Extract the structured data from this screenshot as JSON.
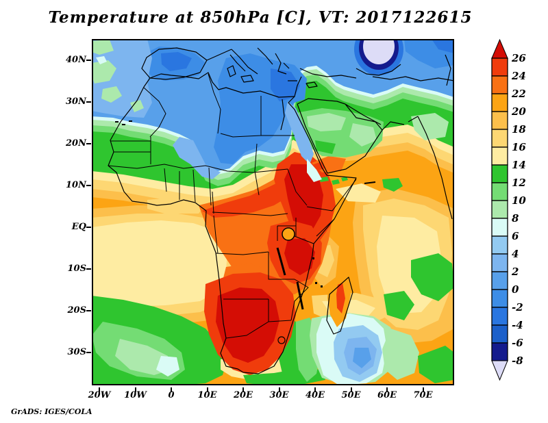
{
  "title": "Temperature at 850hPa [C], VT: 2017122615",
  "credit": "GrADS: IGES/COLA",
  "axes": {
    "y_ticks": [
      "40N",
      "30N",
      "20N",
      "10N",
      "EQ",
      "10S",
      "20S",
      "30S"
    ],
    "x_ticks": [
      "20W",
      "10W",
      "0",
      "10E",
      "20E",
      "30E",
      "40E",
      "50E",
      "60E",
      "70E"
    ]
  },
  "colorbar": {
    "labels": [
      "26",
      "24",
      "22",
      "20",
      "18",
      "16",
      "14",
      "12",
      "10",
      "8",
      "6",
      "4",
      "2",
      "0",
      "-2",
      "-4",
      "-6",
      "-8"
    ]
  },
  "palette": [
    "#dddcf7",
    "#141b8d",
    "#1c60ca",
    "#2a76e0",
    "#3d8de6",
    "#58a0ea",
    "#7db5ef",
    "#93caf1",
    "#dafbf6",
    "#ace9ac",
    "#74dc74",
    "#2fc52f",
    "#feeca2",
    "#fdd773",
    "#fcbf4b",
    "#fca414",
    "#f97114",
    "#f03c0c",
    "#d40d05"
  ],
  "chart_data": {
    "type": "heatmap",
    "title": "Temperature at 850hPa [C], VT: 2017122615",
    "variable": "Temperature",
    "pressure_level": "850hPa",
    "units": "C",
    "valid_time": "2017122615",
    "projection": "lat-lon map of Africa, Mediterranean, Middle East",
    "lon_range": [
      "22W",
      "79E"
    ],
    "lat_range": [
      "38S",
      "45N"
    ],
    "contour_levels": [
      -8,
      -6,
      -4,
      -2,
      0,
      2,
      4,
      6,
      8,
      10,
      12,
      14,
      16,
      18,
      20,
      22,
      24,
      26
    ],
    "legend_position": "right vertical colorbar with end arrows",
    "features": [
      "cold blue air (<4C) over Mediterranean, southern Europe and north Algeria/Libya/Egypt",
      "coldest pocket below -8C (lavender, navy ring) over Black Sea region at top center-right",
      "green 8-14C transition band across ~20-25N and over Levant/Middle East",
      "warm orange 18-24C across Sahara, Sahel, Arabia and tropical oceans",
      "hot cores above 26C (dark red) over Ethiopia/Sudan, Lake Victoria region and Namibia/Botswana/South Africa interior",
      "cool green/blue pool (0-8C) in ocean south-east of South Africa and Madagascar",
      "green 8-14C arc in south-west Atlantic corner"
    ],
    "source": "GrADS: IGES/COLA"
  }
}
